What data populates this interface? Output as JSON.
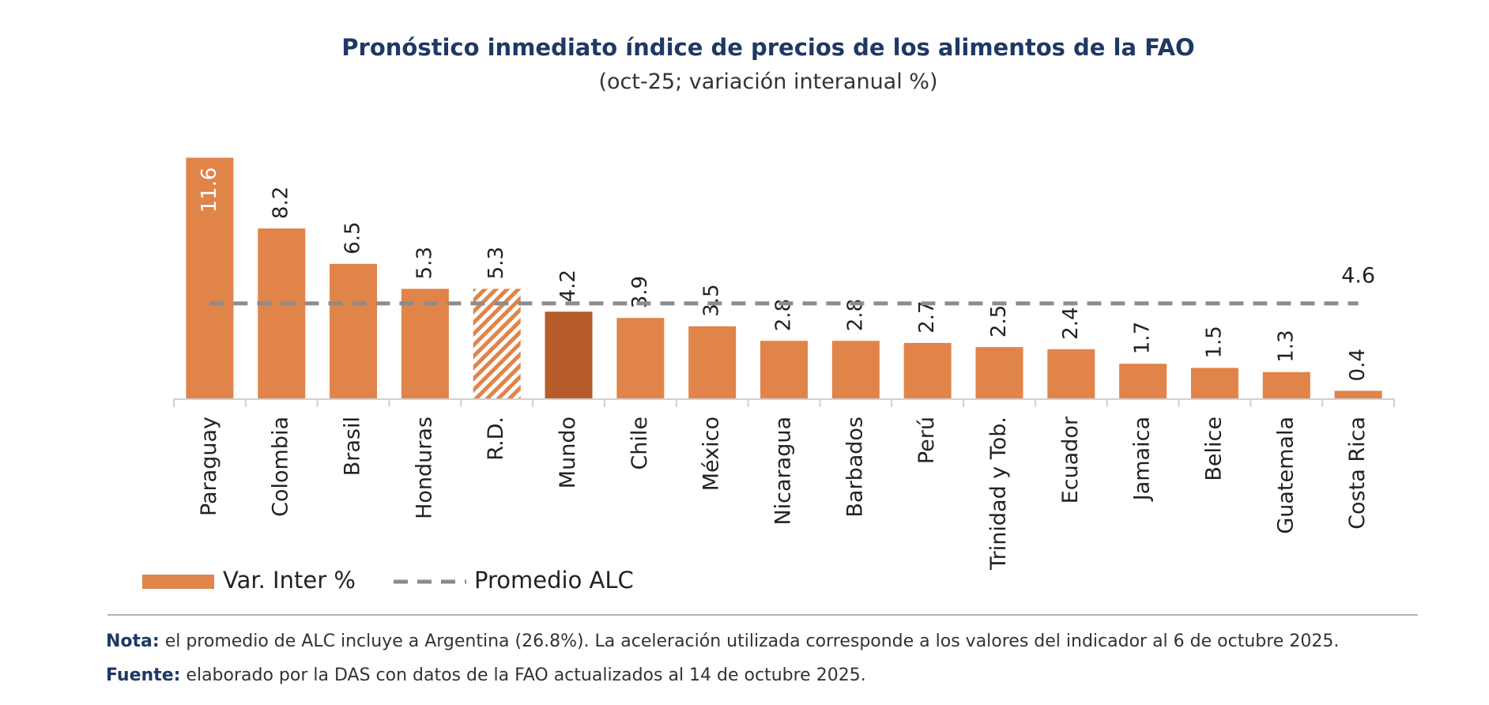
{
  "chart_data": {
    "type": "bar",
    "title": "Pronóstico inmediato índice de precios de los alimentos de la FAO",
    "subtitle": "(oct-25; variación interanual %)",
    "categories": [
      "Paraguay",
      "Colombia",
      "Brasil",
      "Honduras",
      "R.D.",
      "Mundo",
      "Chile",
      "México",
      "Nicaragua",
      "Barbados",
      "Perú",
      "Trinidad y Tob.",
      "Ecuador",
      "Jamaica",
      "Belice",
      "Guatemala",
      "Costa Rica"
    ],
    "series": [
      {
        "name": "Var. Inter %",
        "color": "#e0844a",
        "values": [
          11.6,
          8.2,
          6.5,
          5.3,
          5.3,
          4.2,
          3.9,
          3.5,
          2.8,
          2.8,
          2.7,
          2.5,
          2.4,
          1.7,
          1.5,
          1.3,
          0.4
        ],
        "colors": [
          "#e0844a",
          "#e0844a",
          "#e0844a",
          "#e0844a",
          "#e0844a",
          "#b65b2a",
          "#e0844a",
          "#e0844a",
          "#e0844a",
          "#e0844a",
          "#e0844a",
          "#e0844a",
          "#e0844a",
          "#e0844a",
          "#e0844a",
          "#e0844a",
          "#e0844a"
        ],
        "fills": [
          "solid",
          "solid",
          "solid",
          "solid",
          "hatch",
          "solid",
          "solid",
          "solid",
          "solid",
          "solid",
          "solid",
          "solid",
          "solid",
          "solid",
          "solid",
          "solid",
          "solid"
        ]
      }
    ],
    "reference_line": {
      "name": "Promedio ALC",
      "value": 4.6,
      "color": "#8c8c8c"
    },
    "ylim": [
      0,
      12
    ],
    "grid": false,
    "legend": "bottom-left",
    "notes": [
      {
        "label": "Nota:",
        "text": "el promedio de ALC incluye a Argentina (26.8%). La aceleración utilizada corresponde a los valores del indicador al 6 de octubre 2025."
      },
      {
        "label": "Fuente:",
        "text": "elaborado por la DAS con datos de la FAO actualizados al 14 de octubre 2025."
      }
    ]
  }
}
